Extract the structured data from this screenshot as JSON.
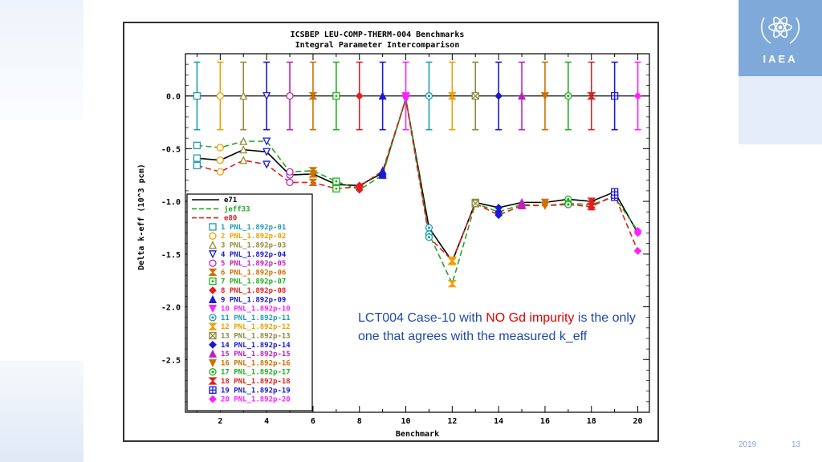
{
  "slide": {
    "date_fragment": "2019",
    "page_number": "13",
    "logo_text": "IAEA"
  },
  "annotation": {
    "part1": "LCT004 Case-10 with ",
    "highlight": "NO Gd impurity",
    "part2": " is the only one that agrees with the measured k_eff",
    "highlight_color": "#e00000",
    "text_color": "#1f4aa8"
  },
  "chart_data": {
    "type": "line",
    "title": "ICSBEP LEU-COMP-THERM-004 Benchmarks",
    "subtitle": "Integral Parameter Intercomparison",
    "xlabel": "Benchmark",
    "ylabel": "Delta k-eff (10^3 pcm)",
    "xlim": [
      0.5,
      20.5
    ],
    "ylim": [
      -3.0,
      0.4
    ],
    "x_ticks": [
      2,
      4,
      6,
      8,
      10,
      12,
      14,
      16,
      18,
      20
    ],
    "y_ticks": [
      0.0,
      -0.5,
      -1.0,
      -1.5,
      -2.0,
      -2.5
    ],
    "y_tick_labels": [
      "0.0",
      "-0.5",
      "-1.0",
      "-1.5",
      "-2.0",
      "-2.5"
    ],
    "x": [
      1,
      2,
      3,
      4,
      5,
      6,
      7,
      8,
      9,
      10,
      11,
      12,
      13,
      14,
      15,
      16,
      17,
      18,
      19,
      20
    ],
    "series": [
      {
        "name": "e71",
        "color": "#000000",
        "dash": "solid",
        "values": [
          -0.59,
          -0.61,
          -0.51,
          -0.53,
          -0.75,
          -0.74,
          -0.84,
          -0.85,
          -0.73,
          -0.03,
          -1.25,
          -1.57,
          -1.01,
          -1.06,
          -1.01,
          -1.01,
          -0.98,
          -1.0,
          -0.91,
          -1.3
        ]
      },
      {
        "name": "jeff33",
        "color": "#22aa22",
        "dash": "dashed",
        "values": [
          -0.47,
          -0.49,
          -0.43,
          -0.43,
          -0.72,
          -0.71,
          -0.81,
          -0.89,
          -0.75,
          -0.02,
          -1.31,
          -1.78,
          -1.02,
          -1.1,
          -1.03,
          -1.04,
          -1.02,
          -1.03,
          -0.96,
          -1.28
        ]
      },
      {
        "name": "e80",
        "color": "#e02020",
        "dash": "dashed",
        "values": [
          -0.66,
          -0.72,
          -0.61,
          -0.65,
          -0.82,
          -0.82,
          -0.88,
          -0.86,
          -0.71,
          -0.03,
          -1.34,
          -1.56,
          -1.02,
          -1.13,
          -1.04,
          -1.04,
          -1.03,
          -1.05,
          -0.94,
          -1.47
        ]
      }
    ],
    "error_bar_half_width": 0.32,
    "cases": [
      {
        "label": "1 PNL_1.892p-01",
        "color": "#1f9bb0",
        "marker": "square-open"
      },
      {
        "label": "2 PNL_1.892p-02",
        "color": "#f0a000",
        "marker": "circle-open"
      },
      {
        "label": "3 PNL_1.892p-03",
        "color": "#9a8a3a",
        "marker": "triangle-open"
      },
      {
        "label": "4 PNL_1.892p-04",
        "color": "#1a1ad0",
        "marker": "triangle-down-open"
      },
      {
        "label": "5 PNL_1.892p-05",
        "color": "#c020c0",
        "marker": "circle-open"
      },
      {
        "label": "6 PNL_1.892p-06",
        "color": "#d07000",
        "marker": "bowtie"
      },
      {
        "label": "7 PNL_1.892p-07",
        "color": "#20b020",
        "marker": "square-dot"
      },
      {
        "label": "8 PNL_1.892p-08",
        "color": "#e02020",
        "marker": "diamond"
      },
      {
        "label": "9 PNL_1.892p-09",
        "color": "#1a1ad0",
        "marker": "triangle"
      },
      {
        "label": "10 PNL_1.892p-10",
        "color": "#ff20ff",
        "marker": "triangle-down"
      },
      {
        "label": "11 PNL_1.892p-11",
        "color": "#1f9bb0",
        "marker": "circle-dot"
      },
      {
        "label": "12 PNL_1.892p-12",
        "color": "#f0a000",
        "marker": "bowtie"
      },
      {
        "label": "13 PNL_1.892p-13",
        "color": "#8a8a40",
        "marker": "square-x"
      },
      {
        "label": "14 PNL_1.892p-14",
        "color": "#1a1ad0",
        "marker": "diamond"
      },
      {
        "label": "15 PNL_1.892p-15",
        "color": "#c020c0",
        "marker": "triangle"
      },
      {
        "label": "16 PNL_1.892p-16",
        "color": "#d07000",
        "marker": "triangle-down"
      },
      {
        "label": "17 PNL_1.892p-17",
        "color": "#20b020",
        "marker": "circle-dot"
      },
      {
        "label": "18 PNL_1.892p-18",
        "color": "#e02020",
        "marker": "bowtie"
      },
      {
        "label": "19 PNL_1.892p-19",
        "color": "#1a1ad0",
        "marker": "square-plus"
      },
      {
        "label": "20 PNL_1.892p-20",
        "color": "#ff20ff",
        "marker": "diamond"
      }
    ],
    "grid": false,
    "legend_position": "bottom-left"
  }
}
